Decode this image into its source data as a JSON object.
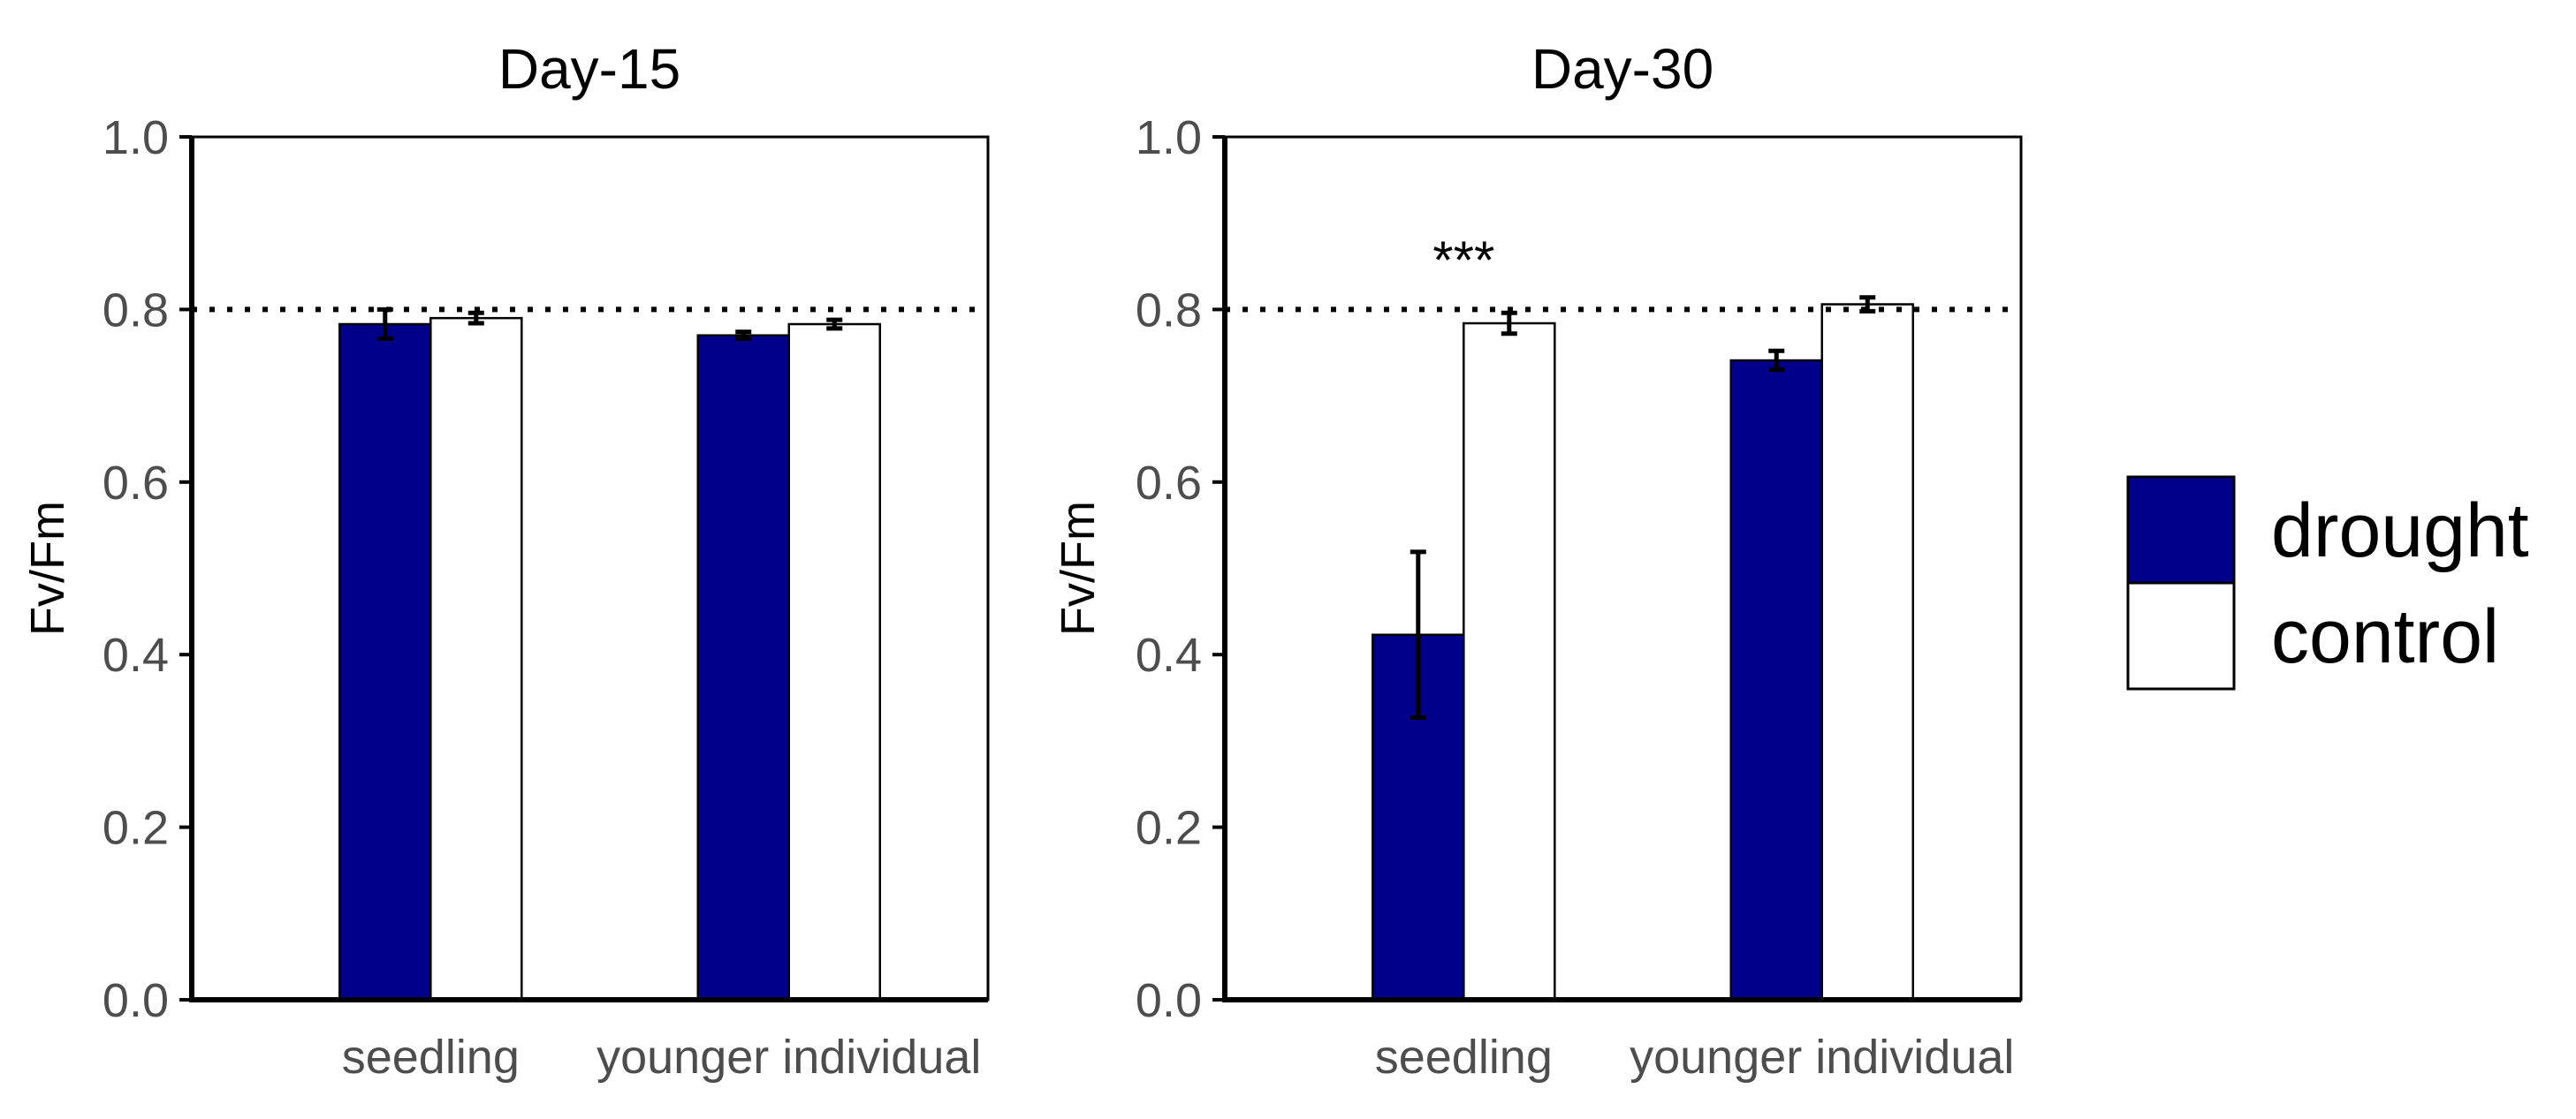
{
  "chart_data": {
    "type": "bar",
    "ylabel": "Fv/Fm",
    "ylim": [
      0,
      1
    ],
    "yticks": [
      "0.0",
      "0.2",
      "0.4",
      "0.6",
      "0.8",
      "1.0"
    ],
    "reference_line": 0.8,
    "categories": [
      "seedling",
      "younger individual"
    ],
    "colors": {
      "drought": "#00008B",
      "control": "#FFFFFF"
    },
    "legend": [
      "drought",
      "control"
    ],
    "panels": [
      {
        "title": "Day-15",
        "series": [
          {
            "name": "drought",
            "values": [
              0.783,
              0.77
            ],
            "errors": [
              0.017,
              0.004
            ]
          },
          {
            "name": "control",
            "values": [
              0.79,
              0.783
            ],
            "errors": [
              0.006,
              0.005
            ]
          }
        ],
        "annotations": []
      },
      {
        "title": "Day-30",
        "series": [
          {
            "name": "drought",
            "values": [
              0.423,
              0.741
            ],
            "errors": [
              0.096,
              0.011
            ]
          },
          {
            "name": "control",
            "values": [
              0.784,
              0.806
            ],
            "errors": [
              0.012,
              0.008
            ]
          }
        ],
        "annotations": [
          {
            "category": "seedling",
            "text": "***"
          }
        ]
      }
    ]
  }
}
